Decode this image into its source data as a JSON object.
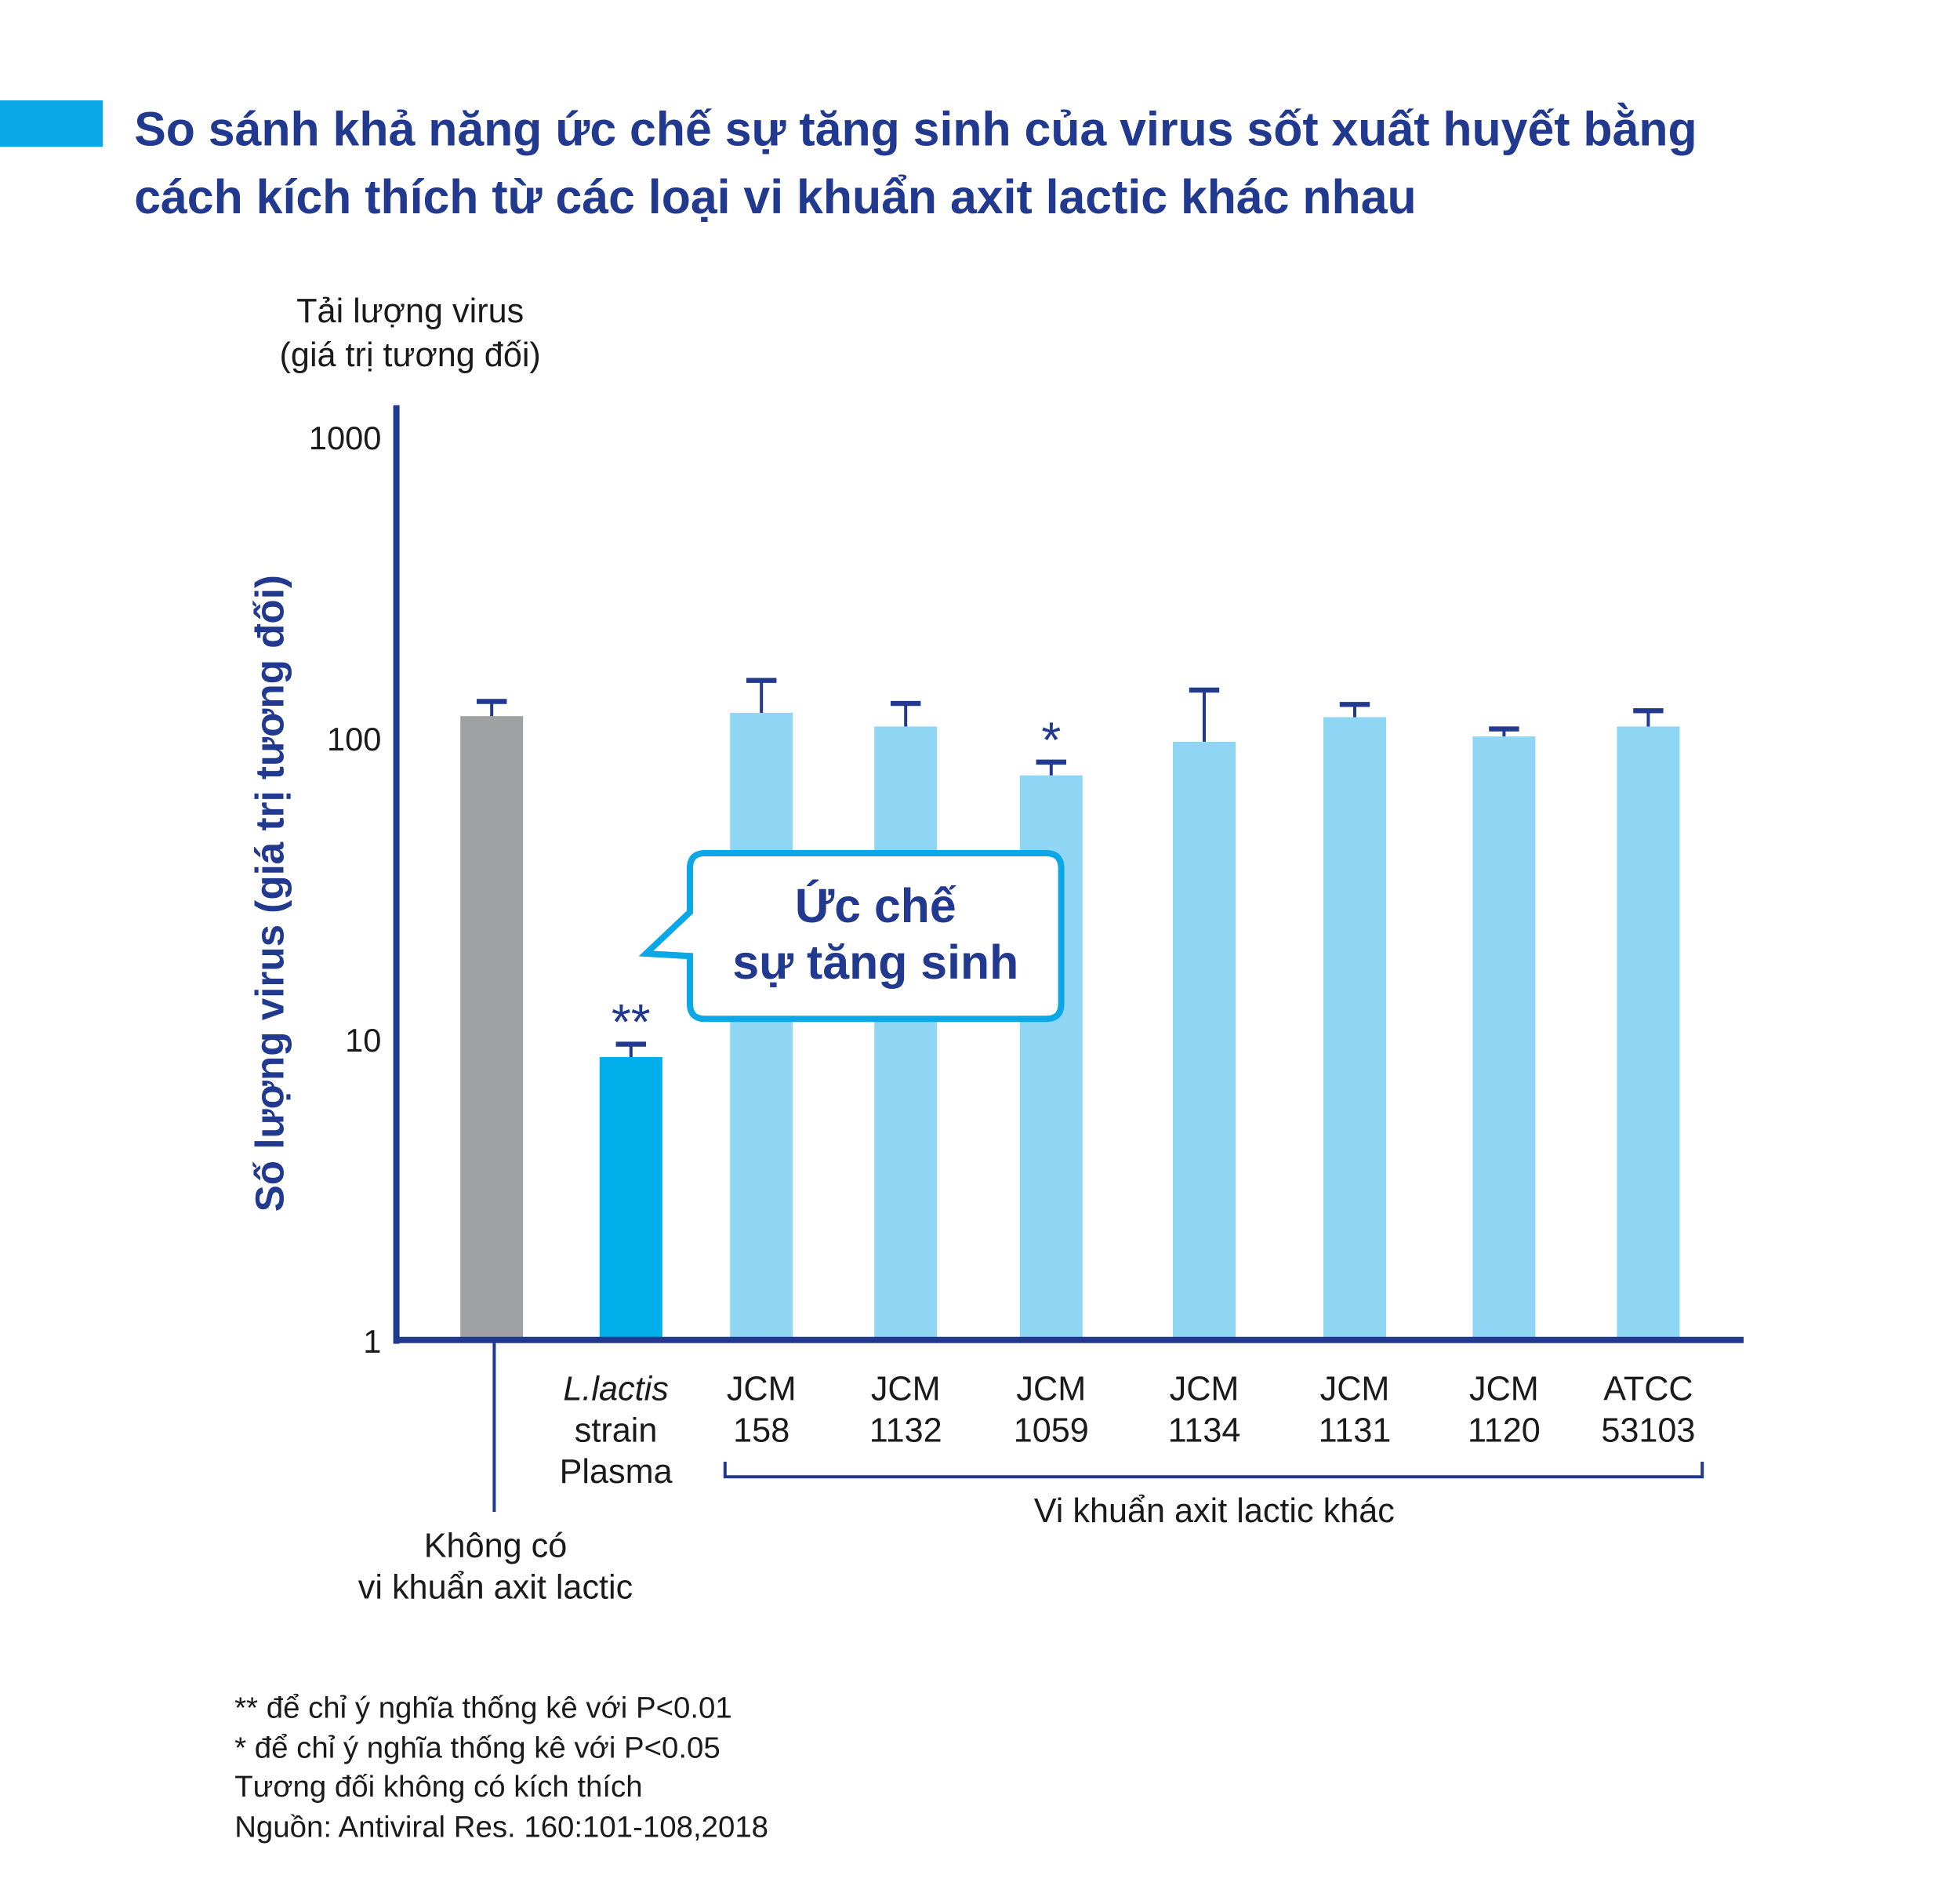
{
  "title_lines": [
    "So sánh khả năng ức chế sự tăng sinh của virus sốt xuất huyết bằng",
    "cách kích thích từ các loại vi khuẩn axit lactic khác nhau"
  ],
  "colors": {
    "accent": "#0aa8e6",
    "dark_blue": "#21398f",
    "gray_bar": "#a0a1a3",
    "lactis_bar": "#00aeea",
    "other_bar": "#8fd6f5"
  },
  "chart_data": {
    "type": "bar",
    "title": "So sánh khả năng ức chế sự tăng sinh của virus sốt xuất huyết bằng cách kích thích từ các loại vi khuẩn axit lactic khác nhau",
    "ylabel": "Số lượng virus (giá trị tương đối)",
    "ylabel_top": [
      "Tải lượng virus",
      "(giá trị tương đối)"
    ],
    "yscale": "log",
    "ylim": [
      1,
      1000
    ],
    "yticks": [
      "1000",
      "100",
      "10",
      "1"
    ],
    "categories": [
      {
        "lines": [
          "",
          "",
          ""
        ],
        "group": "none"
      },
      {
        "lines": [
          "L.lactis",
          "strain",
          "Plasma"
        ],
        "group": "lactis"
      },
      {
        "lines": [
          "JCM",
          "158"
        ],
        "group": "other"
      },
      {
        "lines": [
          "JCM",
          "1132"
        ],
        "group": "other"
      },
      {
        "lines": [
          "JCM",
          "1059"
        ],
        "group": "other"
      },
      {
        "lines": [
          "JCM",
          "1134"
        ],
        "group": "other"
      },
      {
        "lines": [
          "JCM",
          "1131"
        ],
        "group": "other"
      },
      {
        "lines": [
          "JCM",
          "1120"
        ],
        "group": "other"
      },
      {
        "lines": [
          "ATCC",
          "53103"
        ],
        "group": "other"
      }
    ],
    "values": [
      118,
      8.7,
      121,
      109,
      75,
      97,
      117,
      101,
      109
    ],
    "error_upper": [
      132,
      9.6,
      155,
      130,
      83,
      144,
      129,
      107,
      123
    ],
    "significance": [
      "",
      "**",
      "",
      "",
      "*",
      "",
      "",
      "",
      ""
    ],
    "no_bacteria_label": [
      "Không có",
      "vi khuẩn axit lactic"
    ],
    "group_label": "Vi khuẩn axit lactic khác",
    "callout": [
      "Ức chế",
      "sự tăng sinh"
    ]
  },
  "footnotes": [
    "** để chỉ ý nghĩa thống kê với P<0.01",
    "* để chỉ ý nghĩa thống kê với P<0.05",
    "Tương đối không có kích thích",
    "Nguồn: Antiviral Res. 160:101-108,2018"
  ]
}
